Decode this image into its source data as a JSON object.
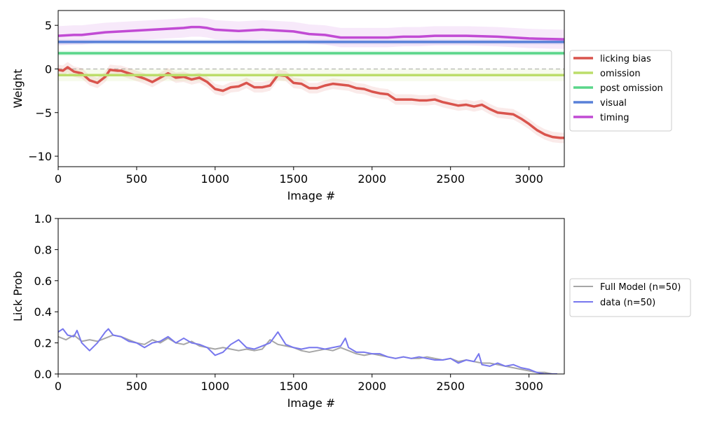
{
  "chart_data": [
    {
      "type": "line",
      "ylabel": "Weight",
      "xlabel": "Image #",
      "xlim": [
        0,
        3225
      ],
      "ylim": [
        -11.2,
        6.7
      ],
      "xticks": [
        0,
        500,
        1000,
        1500,
        2000,
        2500,
        3000
      ],
      "yticks": [
        5,
        0,
        -5,
        -10
      ],
      "ytick_labels": [
        "5",
        "0",
        "−5",
        "−10"
      ],
      "zero_line": true,
      "grid": false,
      "legend_position": "outside-right",
      "series": [
        {
          "name": "licking bias",
          "color": "#d9544d",
          "x": [
            0,
            30,
            60,
            100,
            150,
            200,
            250,
            300,
            330,
            380,
            400,
            450,
            500,
            550,
            600,
            650,
            700,
            750,
            800,
            850,
            900,
            950,
            1000,
            1050,
            1100,
            1150,
            1200,
            1250,
            1300,
            1350,
            1400,
            1450,
            1500,
            1550,
            1600,
            1650,
            1700,
            1750,
            1800,
            1850,
            1900,
            1950,
            2000,
            2050,
            2100,
            2150,
            2200,
            2250,
            2300,
            2350,
            2400,
            2450,
            2500,
            2550,
            2600,
            2650,
            2700,
            2750,
            2800,
            2850,
            2900,
            2950,
            3000,
            3050,
            3100,
            3150,
            3200,
            3225
          ],
          "y": [
            -0.1,
            -0.2,
            0.2,
            -0.3,
            -0.5,
            -1.3,
            -1.6,
            -0.9,
            -0.1,
            -0.2,
            -0.2,
            -0.5,
            -0.8,
            -1.1,
            -1.5,
            -1.0,
            -0.5,
            -1.0,
            -0.9,
            -1.2,
            -1.0,
            -1.5,
            -2.3,
            -2.5,
            -2.1,
            -2.0,
            -1.6,
            -2.1,
            -2.1,
            -1.9,
            -0.7,
            -0.8,
            -1.6,
            -1.7,
            -2.2,
            -2.2,
            -1.9,
            -1.7,
            -1.8,
            -1.9,
            -2.2,
            -2.3,
            -2.6,
            -2.8,
            -2.9,
            -3.5,
            -3.5,
            -3.5,
            -3.6,
            -3.6,
            -3.5,
            -3.8,
            -4.0,
            -4.2,
            -4.1,
            -4.3,
            -4.1,
            -4.6,
            -5.0,
            -5.1,
            -5.2,
            -5.7,
            -6.3,
            -7.0,
            -7.5,
            -7.8,
            -7.9,
            -7.9
          ],
          "band": 0.6
        },
        {
          "name": "omission",
          "color": "#bcdd6a",
          "x": [
            0,
            3225
          ],
          "y": [
            -0.7,
            -0.7
          ],
          "band": 0.7
        },
        {
          "name": "post omission",
          "color": "#5ad68a",
          "x": [
            0,
            3225
          ],
          "y": [
            1.8,
            1.8
          ],
          "band": 0.3
        },
        {
          "name": "visual",
          "color": "#5880d8",
          "x": [
            0,
            3225
          ],
          "y": [
            3.1,
            3.1
          ],
          "band": 0.3
        },
        {
          "name": "timing",
          "color": "#c14bd4",
          "x": [
            0,
            100,
            150,
            200,
            300,
            400,
            500,
            600,
            700,
            800,
            850,
            900,
            950,
            1000,
            1100,
            1150,
            1200,
            1300,
            1400,
            1500,
            1600,
            1700,
            1800,
            1850,
            1900,
            2000,
            2100,
            2200,
            2300,
            2400,
            2500,
            2600,
            2700,
            2800,
            2900,
            3000,
            3100,
            3225
          ],
          "y": [
            3.8,
            3.9,
            3.9,
            4.0,
            4.2,
            4.3,
            4.4,
            4.5,
            4.6,
            4.7,
            4.8,
            4.8,
            4.7,
            4.5,
            4.4,
            4.35,
            4.4,
            4.5,
            4.4,
            4.3,
            4.0,
            3.9,
            3.6,
            3.6,
            3.6,
            3.6,
            3.6,
            3.7,
            3.7,
            3.8,
            3.8,
            3.8,
            3.75,
            3.7,
            3.6,
            3.5,
            3.45,
            3.4
          ],
          "band": 1.1
        }
      ]
    },
    {
      "type": "line",
      "ylabel": "Lick Prob",
      "xlabel": "Image #",
      "xlim": [
        0,
        3225
      ],
      "ylim": [
        0.0,
        1.0
      ],
      "xticks": [
        0,
        500,
        1000,
        1500,
        2000,
        2500,
        3000
      ],
      "yticks": [
        0.0,
        0.2,
        0.4,
        0.6,
        0.8,
        1.0
      ],
      "ytick_labels": [
        "0.0",
        "0.2",
        "0.4",
        "0.6",
        "0.8",
        "1.0"
      ],
      "grid": false,
      "legend_position": "outside-right",
      "series": [
        {
          "name": "Full Model (n=50)",
          "color": "#a6a6a6",
          "x": [
            0,
            50,
            100,
            150,
            200,
            250,
            300,
            350,
            400,
            450,
            500,
            550,
            600,
            650,
            700,
            750,
            800,
            850,
            900,
            950,
            1000,
            1050,
            1100,
            1150,
            1200,
            1250,
            1300,
            1350,
            1400,
            1450,
            1500,
            1550,
            1600,
            1650,
            1700,
            1750,
            1800,
            1850,
            1900,
            1950,
            2000,
            2050,
            2100,
            2150,
            2200,
            2250,
            2300,
            2350,
            2400,
            2450,
            2500,
            2550,
            2600,
            2650,
            2700,
            2750,
            2800,
            2850,
            2900,
            2950,
            3000,
            3050,
            3100,
            3150,
            3180
          ],
          "y": [
            0.24,
            0.22,
            0.25,
            0.21,
            0.22,
            0.21,
            0.23,
            0.25,
            0.24,
            0.22,
            0.2,
            0.19,
            0.22,
            0.2,
            0.23,
            0.2,
            0.19,
            0.21,
            0.18,
            0.17,
            0.16,
            0.17,
            0.16,
            0.15,
            0.16,
            0.15,
            0.16,
            0.22,
            0.19,
            0.18,
            0.17,
            0.15,
            0.14,
            0.15,
            0.16,
            0.15,
            0.17,
            0.15,
            0.13,
            0.12,
            0.13,
            0.12,
            0.11,
            0.1,
            0.11,
            0.1,
            0.1,
            0.11,
            0.1,
            0.09,
            0.1,
            0.08,
            0.09,
            0.08,
            0.07,
            0.07,
            0.06,
            0.05,
            0.04,
            0.03,
            0.02,
            0.01,
            0.01,
            0.0,
            0.0
          ]
        },
        {
          "name": "data (n=50)",
          "color": "#7777ee",
          "x": [
            0,
            30,
            60,
            100,
            120,
            150,
            200,
            250,
            300,
            320,
            350,
            400,
            450,
            500,
            550,
            600,
            650,
            700,
            750,
            800,
            850,
            900,
            950,
            1000,
            1050,
            1100,
            1150,
            1200,
            1250,
            1300,
            1350,
            1400,
            1450,
            1500,
            1550,
            1600,
            1650,
            1700,
            1750,
            1800,
            1830,
            1850,
            1900,
            1950,
            2000,
            2050,
            2100,
            2150,
            2200,
            2250,
            2300,
            2350,
            2400,
            2450,
            2500,
            2550,
            2600,
            2650,
            2680,
            2700,
            2750,
            2800,
            2850,
            2900,
            2950,
            3000,
            3050,
            3100,
            3150,
            3180
          ],
          "y": [
            0.27,
            0.29,
            0.25,
            0.24,
            0.28,
            0.2,
            0.15,
            0.2,
            0.27,
            0.29,
            0.25,
            0.24,
            0.21,
            0.2,
            0.17,
            0.2,
            0.21,
            0.24,
            0.2,
            0.23,
            0.2,
            0.19,
            0.17,
            0.12,
            0.14,
            0.19,
            0.22,
            0.17,
            0.16,
            0.18,
            0.2,
            0.27,
            0.19,
            0.17,
            0.16,
            0.17,
            0.17,
            0.16,
            0.17,
            0.18,
            0.23,
            0.17,
            0.14,
            0.14,
            0.13,
            0.13,
            0.11,
            0.1,
            0.11,
            0.1,
            0.11,
            0.1,
            0.09,
            0.09,
            0.1,
            0.07,
            0.09,
            0.08,
            0.13,
            0.06,
            0.05,
            0.07,
            0.05,
            0.06,
            0.04,
            0.03,
            0.01,
            0.0,
            0.0,
            0.0
          ]
        }
      ]
    }
  ]
}
